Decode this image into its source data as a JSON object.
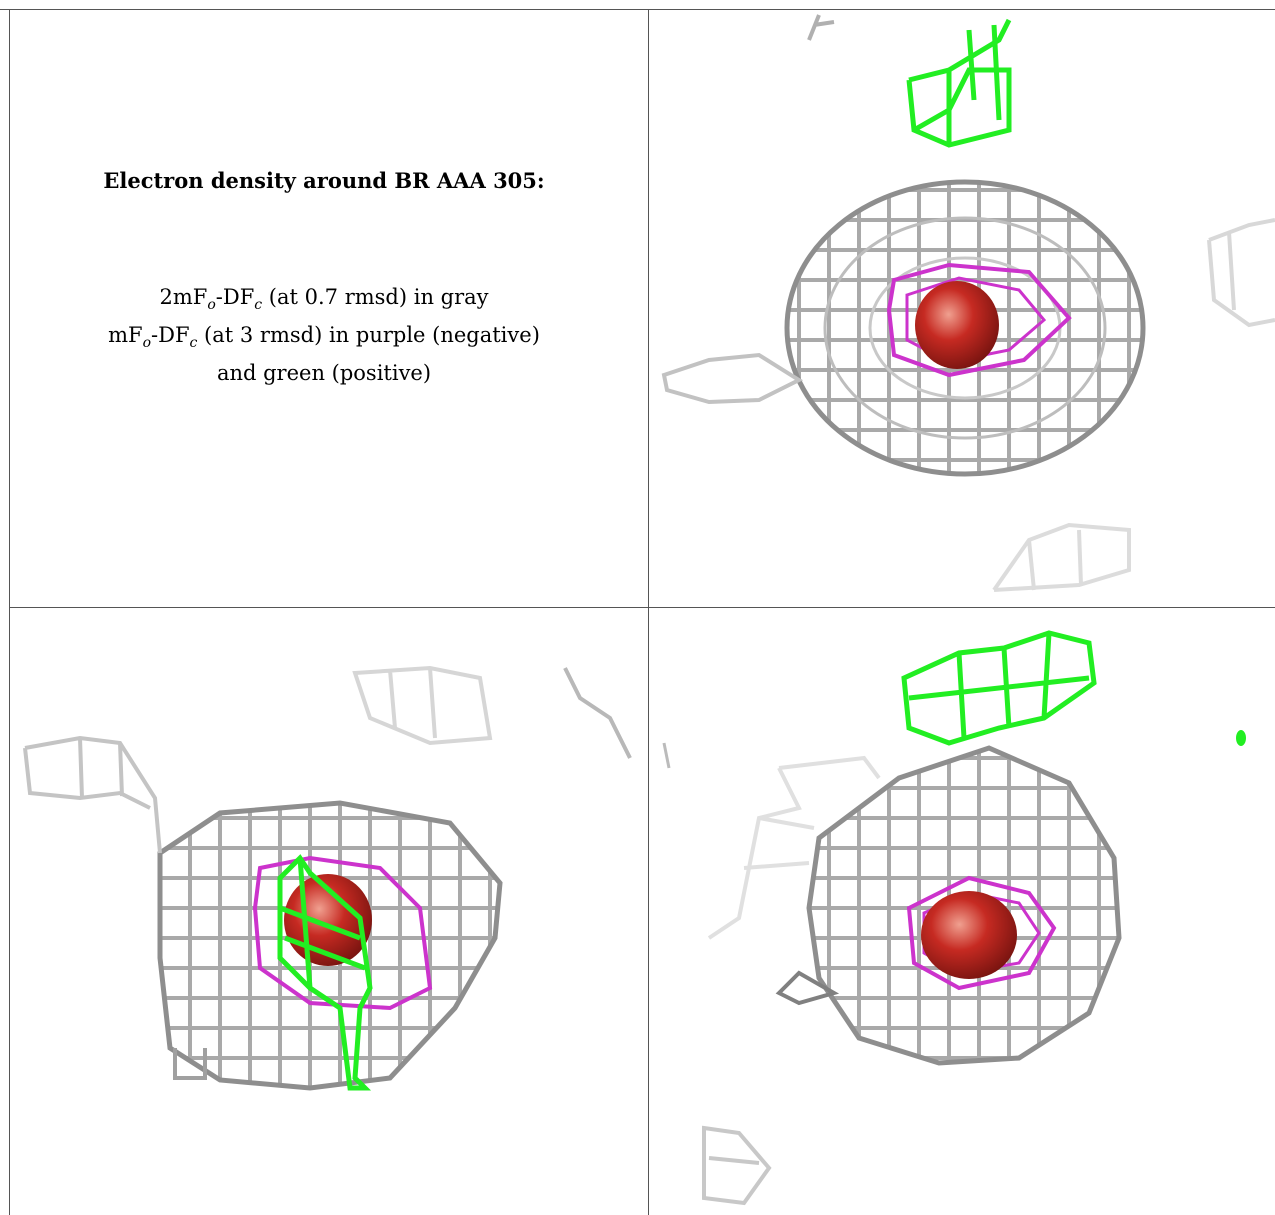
{
  "caption": {
    "title": "Electron density around BR AAA 305:",
    "line1_pre": "2mF",
    "line1_sub1": "o",
    "line1_mid": "-DF",
    "line1_sub2": "c",
    "line1_post": " (at 0.7 rmsd) in gray",
    "line2_pre": "mF",
    "line2_sub1": "o",
    "line2_mid": "-DF",
    "line2_sub2": "c",
    "line2_post": " (at 3 rmsd) in purple (negative)",
    "line3": "and green (positive)"
  },
  "colors": {
    "map_2fofc": "#a9a9a9",
    "map_fofc_negative": "#cc33cc",
    "map_fofc_positive": "#22ee22",
    "atom": "#c62a22",
    "border": "#555555"
  },
  "panels": [
    {
      "id": "view-top-right",
      "has_positive_density": true
    },
    {
      "id": "view-bottom-left",
      "has_positive_density": true
    },
    {
      "id": "view-bottom-right",
      "has_positive_density": true
    }
  ]
}
